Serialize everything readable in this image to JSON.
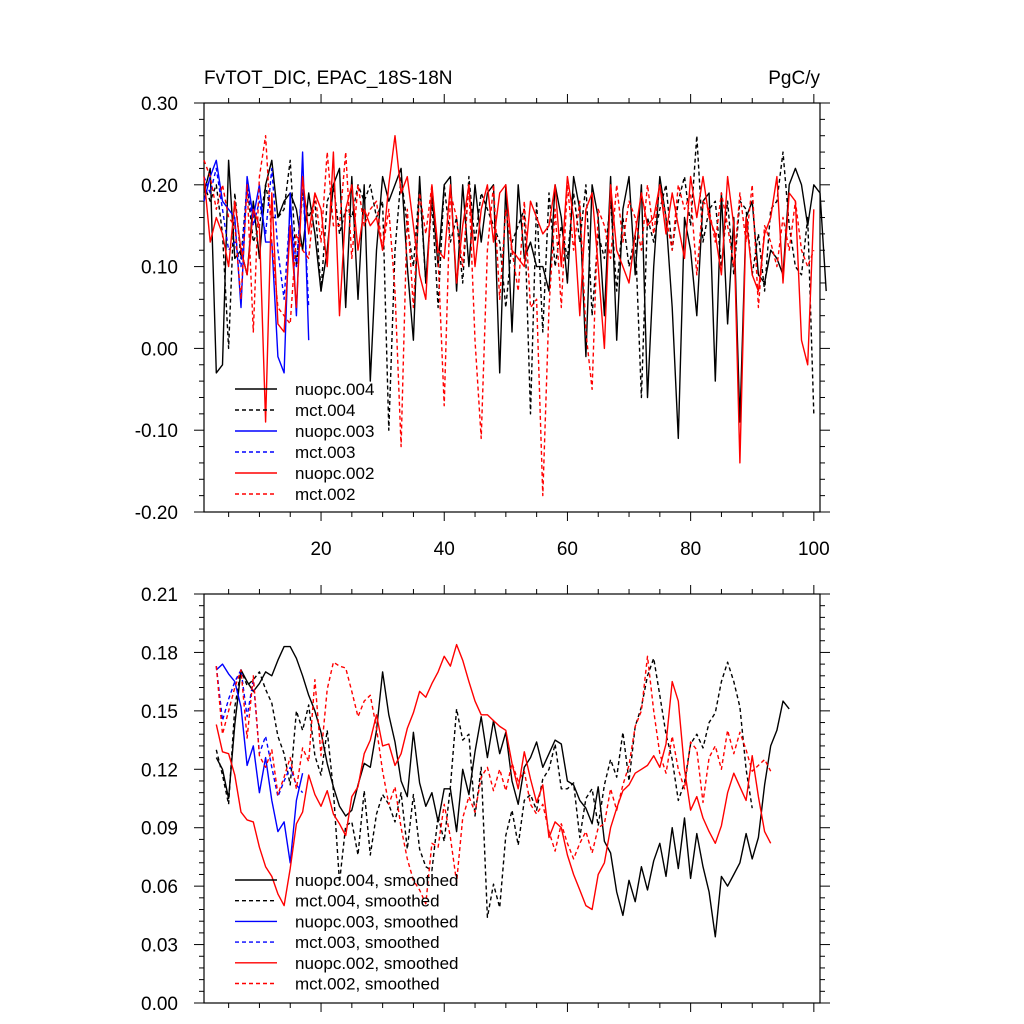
{
  "chart_data": [
    {
      "type": "line",
      "title_left": "FvTOT_DIC, EPAC_18S-18N",
      "title_right": "PgC/y",
      "xlim": [
        1,
        101
      ],
      "ylim": [
        -0.2,
        0.3
      ],
      "x_ticks": [
        20,
        40,
        60,
        80,
        100
      ],
      "x_tick_labels": [
        "20",
        "40",
        "60",
        "80",
        "100"
      ],
      "y_ticks": [
        -0.2,
        -0.1,
        0.0,
        0.1,
        0.2,
        0.3
      ],
      "y_tick_labels": [
        "-0.20",
        "-0.10",
        "0.00",
        "0.10",
        "0.20",
        "0.30"
      ],
      "legend": [
        "nuopc.004",
        "mct.004",
        "nuopc.003",
        "mct.003",
        "nuopc.002",
        "mct.002"
      ],
      "series": [
        {
          "name": "nuopc.004",
          "color": "#000000",
          "dash": "solid",
          "x_start": 1,
          "values": [
            0.19,
            0.22,
            -0.03,
            -0.02,
            0.23,
            0.11,
            0.12,
            0.09,
            0.18,
            0.11,
            0.2,
            0.23,
            0.16,
            0.18,
            0.19,
            0.17,
            0.12,
            0.19,
            0.14,
            0.07,
            0.12,
            0.2,
            0.22,
            0.05,
            0.21,
            0.06,
            0.2,
            -0.04,
            0.12,
            0.21,
            0.18,
            0.2,
            0.22,
            0.1,
            0.01,
            0.21,
            0.08,
            0.19,
            0.1,
            0.2,
            0.21,
            0.07,
            0.2,
            0.1,
            0.2,
            0.13,
            0.19,
            0.2,
            -0.03,
            0.2,
            0.02,
            0.2,
            0.11,
            0.13,
            0.1,
            0.1,
            0.07,
            0.2,
            0.16,
            0.08,
            0.21,
            0.17,
            -0.01,
            0.2,
            0.16,
            0.04,
            0.21,
            0.01,
            0.17,
            0.21,
            0.09,
            0.2,
            -0.06,
            0.1,
            0.21,
            0.16,
            0.05,
            -0.11,
            0.16,
            0.12,
            0.04,
            0.18,
            0.19,
            -0.04,
            0.19,
            0.03,
            0.16,
            -0.09,
            0.16,
            0.18,
            0.09,
            0.08,
            0.12,
            0.11,
            0.09,
            0.2,
            0.22,
            0.2,
            0.15,
            0.2,
            0.19,
            0.07
          ]
        },
        {
          "name": "mct.004",
          "color": "#000000",
          "dash": "dashed",
          "x_start": 1,
          "values": [
            0.2,
            0.18,
            0.2,
            0.14,
            0.0,
            0.19,
            0.11,
            0.2,
            0.13,
            0.15,
            0.2,
            0.16,
            0.16,
            0.17,
            0.23,
            0.1,
            0.19,
            0.16,
            0.18,
            0.07,
            0.18,
            0.2,
            0.14,
            0.17,
            0.16,
            0.2,
            0.18,
            0.2,
            0.16,
            0.18,
            -0.1,
            0.12,
            0.21,
            0.15,
            0.1,
            0.2,
            0.08,
            0.18,
            0.05,
            0.2,
            0.13,
            0.16,
            0.08,
            0.21,
            0.13,
            0.19,
            0.17,
            0.15,
            0.13,
            0.05,
            0.13,
            0.15,
            0.17,
            -0.08,
            0.18,
            0.02,
            0.19,
            0.1,
            0.15,
            0.11,
            0.19,
            0.13,
            0.2,
            0.04,
            0.14,
            0.11,
            0.18,
            0.07,
            0.16,
            0.1,
            0.14,
            -0.06,
            0.16,
            0.13,
            0.17,
            0.2,
            0.12,
            0.18,
            0.21,
            0.15,
            0.26,
            0.13,
            0.17,
            0.18,
            0.1,
            0.18,
            0.09,
            0.18,
            0.17,
            0.09,
            0.14,
            0.07,
            0.17,
            0.18,
            0.24,
            0.15,
            0.1,
            0.09,
            0.16,
            -0.08
          ]
        },
        {
          "name": "nuopc.003",
          "color": "#0000ff",
          "dash": "solid",
          "x_start": 1,
          "values": [
            0.18,
            0.21,
            0.23,
            0.18,
            0.17,
            0.16,
            0.05,
            0.21,
            0.16,
            0.2,
            0.13,
            0.13,
            -0.01,
            -0.03,
            0.19,
            0.04,
            0.24,
            0.01
          ]
        },
        {
          "name": "mct.003",
          "color": "#0000ff",
          "dash": "dashed",
          "x_start": 1,
          "values": [
            0.21,
            0.19,
            0.22,
            0.17,
            0.12,
            0.13,
            0.1,
            0.2,
            0.15,
            0.18,
            0.14,
            0.22,
            0.12,
            0.06,
            0.17,
            0.1,
            0.21,
            0.05
          ]
        },
        {
          "name": "nuopc.002",
          "color": "#ff0000",
          "dash": "solid",
          "x_start": 1,
          "values": [
            0.21,
            0.13,
            0.16,
            0.14,
            0.1,
            0.18,
            0.12,
            0.09,
            0.17,
            0.15,
            -0.09,
            0.19,
            0.03,
            0.02,
            0.15,
            0.05,
            0.21,
            0.14,
            0.19,
            0.17,
            0.1,
            0.24,
            0.04,
            0.17,
            0.2,
            0.12,
            0.17,
            0.15,
            0.16,
            0.12,
            0.2,
            0.26,
            0.19,
            0.21,
            0.15,
            0.09,
            0.06,
            0.2,
            0.12,
            0.11,
            0.2,
            0.08,
            0.15,
            0.2,
            0.1,
            0.17,
            0.2,
            0.13,
            0.19,
            0.2,
            0.12,
            0.11,
            0.1,
            0.18,
            0.16,
            0.14,
            0.15,
            0.2,
            0.1,
            0.21,
            0.16,
            0.04,
            0.17,
            0.19,
            0.1,
            0.0,
            0.2,
            0.12,
            0.1,
            0.08,
            0.14,
            0.19,
            0.15,
            0.16,
            0.2,
            0.14,
            0.19,
            0.15,
            0.11,
            0.21,
            0.16,
            0.21,
            0.16,
            0.14,
            0.09,
            0.21,
            0.15,
            -0.14,
            0.16,
            0.09,
            0.07,
            0.14,
            0.16,
            0.21,
            0.08,
            0.19,
            0.18,
            0.01,
            -0.02,
            0.17
          ]
        },
        {
          "name": "mct.002",
          "color": "#ff0000",
          "dash": "dashed",
          "x_start": 1,
          "values": [
            0.23,
            0.21,
            0.17,
            0.2,
            0.16,
            0.15,
            0.06,
            0.2,
            0.02,
            0.21,
            0.26,
            0.13,
            0.05,
            0.04,
            0.03,
            0.14,
            0.12,
            0.11,
            0.19,
            0.13,
            0.24,
            0.15,
            0.15,
            0.24,
            0.11,
            0.2,
            0.15,
            0.17,
            0.18,
            0.12,
            0.17,
            0.07,
            -0.12,
            0.17,
            0.05,
            0.19,
            0.14,
            0.2,
            0.11,
            -0.07,
            0.19,
            0.16,
            0.1,
            0.2,
            0.01,
            -0.11,
            0.12,
            0.2,
            0.06,
            0.17,
            0.12,
            0.07,
            0.18,
            0.05,
            0.06,
            -0.18,
            0.05,
            0.17,
            0.05,
            0.2,
            0.12,
            0.18,
            0.02,
            -0.05,
            0.17,
            0.15,
            0.11,
            0.2,
            0.13,
            0.18,
            0.16,
            0.12,
            0.2,
            0.14,
            0.2,
            0.16,
            0.12,
            0.2,
            0.17,
            0.19,
            0.09,
            0.18,
            0.17,
            0.13,
            0.19,
            0.15,
            0.1,
            0.19,
            0.13,
            0.2,
            0.05,
            0.15,
            0.13,
            0.1,
            0.16,
            0.12,
            0.18,
            0.12,
            0.1,
            0.12
          ]
        }
      ]
    },
    {
      "type": "line",
      "xlim": [
        1,
        101
      ],
      "ylim": [
        0.0,
        0.21
      ],
      "y_ticks": [
        0.0,
        0.03,
        0.06,
        0.09,
        0.12,
        0.15,
        0.18,
        0.21
      ],
      "y_tick_labels": [
        "0.00",
        "0.03",
        "0.06",
        "0.09",
        "0.12",
        "0.15",
        "0.18",
        "0.21"
      ],
      "legend": [
        "nuopc.004, smoothed",
        "mct.004, smoothed",
        "nuopc.003, smoothed",
        "mct.003, smoothed",
        "nuopc.002, smoothed",
        "mct.002, smoothed"
      ],
      "series": [
        {
          "name": "nuopc.004, smoothed",
          "color": "#000000",
          "dash": "solid",
          "x_start": 3,
          "values": [
            0.126,
            0.12,
            0.105,
            0.143,
            0.171,
            0.165,
            0.16,
            0.164,
            0.17,
            0.168,
            0.176,
            0.183,
            0.183,
            0.177,
            0.168,
            0.158,
            0.15,
            0.139,
            0.123,
            0.111,
            0.101,
            0.096,
            0.099,
            0.112,
            0.123,
            0.121,
            0.14,
            0.17,
            0.148,
            0.134,
            0.114,
            0.106,
            0.139,
            0.113,
            0.101,
            0.108,
            0.093,
            0.11,
            0.11,
            0.088,
            0.12,
            0.107,
            0.129,
            0.147,
            0.126,
            0.145,
            0.128,
            0.139,
            0.114,
            0.102,
            0.121,
            0.126,
            0.134,
            0.121,
            0.128,
            0.135,
            0.133,
            0.114,
            0.112,
            0.104,
            0.1,
            0.092,
            0.111,
            0.083,
            0.077,
            0.057,
            0.045,
            0.063,
            0.052,
            0.07,
            0.058,
            0.073,
            0.082,
            0.065,
            0.09,
            0.069,
            0.095,
            0.064,
            0.087,
            0.07,
            0.057,
            0.034,
            0.065,
            0.06,
            0.066,
            0.072,
            0.087,
            0.074,
            0.085,
            0.112,
            0.132,
            0.14,
            0.155,
            0.151
          ]
        },
        {
          "name": "mct.004, smoothed",
          "color": "#000000",
          "dash": "dashed",
          "x_start": 3,
          "values": [
            0.13,
            0.117,
            0.102,
            0.152,
            0.171,
            0.163,
            0.166,
            0.17,
            0.161,
            0.154,
            0.137,
            0.128,
            0.112,
            0.15,
            0.14,
            0.153,
            0.127,
            0.117,
            0.14,
            0.109,
            0.062,
            0.091,
            0.093,
            0.076,
            0.109,
            0.076,
            0.097,
            0.107,
            0.102,
            0.093,
            0.108,
            0.079,
            0.107,
            0.079,
            0.07,
            0.068,
            0.096,
            0.083,
            0.111,
            0.151,
            0.135,
            0.138,
            0.096,
            0.121,
            0.044,
            0.061,
            0.049,
            0.086,
            0.099,
            0.081,
            0.104,
            0.107,
            0.099,
            0.115,
            0.12,
            0.133,
            0.11,
            0.11,
            0.113,
            0.085,
            0.105,
            0.11,
            0.091,
            0.112,
            0.125,
            0.116,
            0.139,
            0.114,
            0.142,
            0.152,
            0.168,
            0.177,
            0.158,
            0.138,
            0.125,
            0.104,
            0.113,
            0.133,
            0.138,
            0.131,
            0.144,
            0.149,
            0.165,
            0.175,
            0.165,
            0.152,
            0.12,
            0.1
          ]
        },
        {
          "name": "nuopc.003, smoothed",
          "color": "#0000ff",
          "dash": "solid",
          "x_start": 3,
          "values": [
            0.171,
            0.174,
            0.169,
            0.165,
            0.152,
            0.122,
            0.132,
            0.108,
            0.126,
            0.104,
            0.088,
            0.093,
            0.072,
            0.104,
            0.118
          ]
        },
        {
          "name": "mct.003, smoothed",
          "color": "#0000ff",
          "dash": "dashed",
          "x_start": 3,
          "values": [
            0.173,
            0.145,
            0.156,
            0.165,
            0.171,
            0.147,
            0.166,
            0.128,
            0.137,
            0.121,
            0.106,
            0.114,
            0.121,
            0.112,
            0.108
          ]
        },
        {
          "name": "nuopc.002, smoothed",
          "color": "#ff0000",
          "dash": "solid",
          "x_start": 3,
          "values": [
            0.143,
            0.129,
            0.128,
            0.117,
            0.098,
            0.094,
            0.093,
            0.08,
            0.07,
            0.065,
            0.056,
            0.05,
            0.069,
            0.092,
            0.098,
            0.117,
            0.107,
            0.101,
            0.109,
            0.097,
            0.092,
            0.086,
            0.106,
            0.111,
            0.128,
            0.135,
            0.148,
            0.132,
            0.133,
            0.122,
            0.128,
            0.141,
            0.149,
            0.16,
            0.157,
            0.164,
            0.17,
            0.178,
            0.173,
            0.184,
            0.176,
            0.165,
            0.155,
            0.148,
            0.148,
            0.145,
            0.142,
            0.14,
            0.123,
            0.11,
            0.129,
            0.115,
            0.103,
            0.112,
            0.085,
            0.093,
            0.09,
            0.076,
            0.066,
            0.058,
            0.05,
            0.048,
            0.066,
            0.072,
            0.09,
            0.1,
            0.109,
            0.112,
            0.118,
            0.12,
            0.122,
            0.127,
            0.121,
            0.133,
            0.165,
            0.155,
            0.12,
            0.099,
            0.106,
            0.095,
            0.088,
            0.082,
            0.091,
            0.108,
            0.118,
            0.111,
            0.104,
            0.127,
            0.106,
            0.088,
            0.082
          ]
        },
        {
          "name": "mct.002, smoothed",
          "color": "#ff0000",
          "dash": "dashed",
          "x_start": 3,
          "values": [
            0.173,
            0.138,
            0.15,
            0.162,
            0.171,
            0.136,
            0.168,
            0.127,
            0.121,
            0.13,
            0.107,
            0.116,
            0.126,
            0.11,
            0.131,
            0.124,
            0.166,
            0.127,
            0.161,
            0.175,
            0.173,
            0.172,
            0.16,
            0.147,
            0.155,
            0.158,
            0.141,
            0.119,
            0.102,
            0.111,
            0.09,
            0.074,
            0.063,
            0.058,
            0.051,
            0.082,
            0.08,
            0.102,
            0.085,
            0.062,
            0.095,
            0.106,
            0.098,
            0.116,
            0.121,
            0.109,
            0.12,
            0.109,
            0.123,
            0.114,
            0.119,
            0.102,
            0.097,
            0.102,
            0.088,
            0.078,
            0.092,
            0.082,
            0.074,
            0.082,
            0.088,
            0.077,
            0.09,
            0.092,
            0.11,
            0.099,
            0.112,
            0.122,
            0.142,
            0.15,
            0.178,
            0.15,
            0.128,
            0.118,
            0.137,
            0.12,
            0.11,
            0.134,
            0.13,
            0.103,
            0.126,
            0.132,
            0.12,
            0.14,
            0.128,
            0.139,
            0.13,
            0.119,
            0.122,
            0.125,
            0.119
          ]
        }
      ]
    }
  ]
}
